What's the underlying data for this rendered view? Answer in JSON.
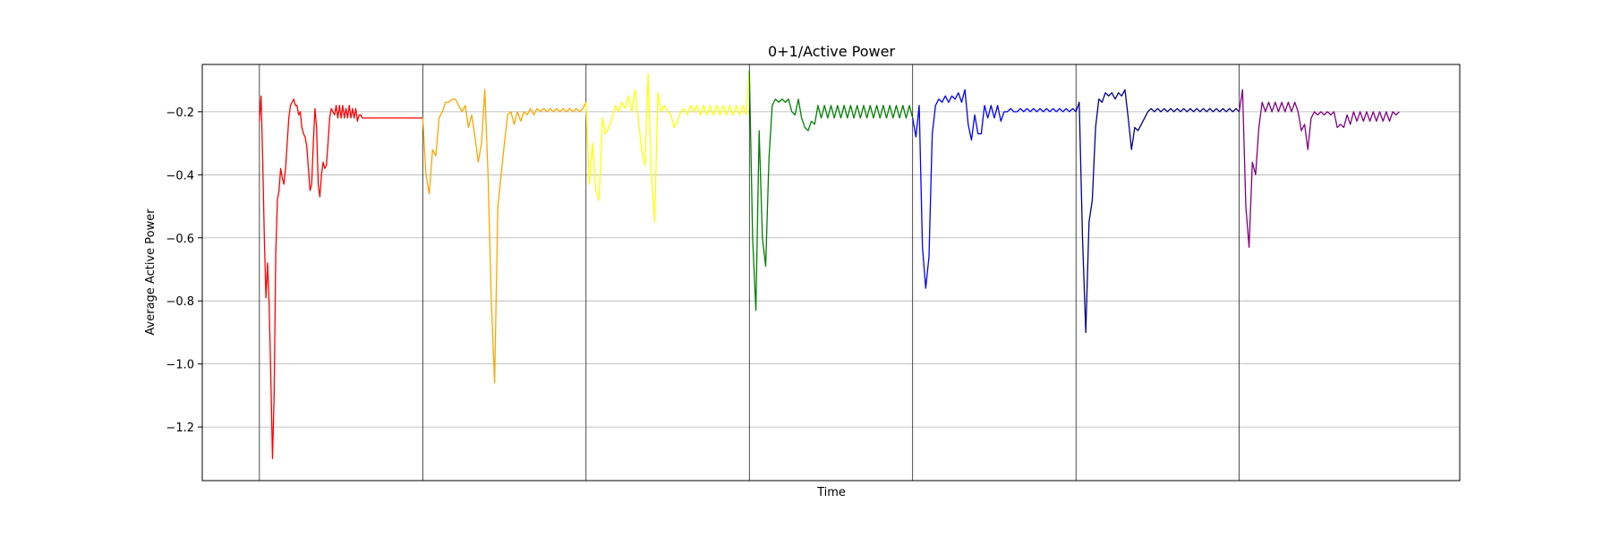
{
  "chart_data": {
    "type": "line",
    "title": "0+1/Active Power",
    "xlabel": "Time",
    "ylabel": "Average Active Power",
    "ylim": [
      -1.37,
      -0.05
    ],
    "xlim": [
      -0.35,
      7.35
    ],
    "grid": "y",
    "yticks": [
      -0.2,
      -0.4,
      -0.6,
      -0.8,
      -1.0,
      -1.2
    ],
    "ytick_labels": [
      "−0.2",
      "−0.4",
      "−0.6",
      "−0.8",
      "−1.0",
      "−1.2"
    ],
    "vlines": [
      0,
      1,
      2,
      3,
      4,
      5,
      6
    ],
    "series": [
      {
        "color": "#ff0000",
        "x": [
          0.0,
          0.01,
          0.02,
          0.03,
          0.04,
          0.05,
          0.06,
          0.07,
          0.08,
          0.09,
          0.1,
          0.11,
          0.12,
          0.13,
          0.14,
          0.15,
          0.16,
          0.17,
          0.18,
          0.19,
          0.2,
          0.21,
          0.22,
          0.23,
          0.24,
          0.25,
          0.26,
          0.27,
          0.28,
          0.29,
          0.3,
          0.31,
          0.32,
          0.33,
          0.34,
          0.35,
          0.36,
          0.37,
          0.38,
          0.39,
          0.4,
          0.41,
          0.42,
          0.43,
          0.44,
          0.45,
          0.46,
          0.47,
          0.48,
          0.49,
          0.5,
          0.51,
          0.52,
          0.53,
          0.54,
          0.55,
          0.56,
          0.57,
          0.58,
          0.59,
          0.6,
          0.61,
          0.62,
          0.63,
          0.64,
          0.65,
          0.66,
          0.67,
          0.68,
          0.69,
          0.7,
          0.71,
          0.72,
          0.73,
          0.74,
          0.75,
          0.76,
          0.77,
          0.78,
          0.79,
          0.8,
          0.81,
          0.82,
          0.83,
          0.84,
          0.85,
          0.86,
          0.87,
          0.88,
          0.89,
          0.9,
          0.91,
          0.92,
          0.93,
          0.94,
          0.95,
          0.96,
          0.97,
          0.98,
          0.99,
          1.0
        ],
        "y": [
          -0.23,
          -0.15,
          -0.35,
          -0.6,
          -0.79,
          -0.68,
          -0.82,
          -1.05,
          -1.3,
          -1.1,
          -0.65,
          -0.48,
          -0.45,
          -0.38,
          -0.41,
          -0.43,
          -0.38,
          -0.3,
          -0.22,
          -0.18,
          -0.17,
          -0.16,
          -0.18,
          -0.18,
          -0.21,
          -0.2,
          -0.25,
          -0.27,
          -0.28,
          -0.31,
          -0.38,
          -0.45,
          -0.43,
          -0.3,
          -0.19,
          -0.25,
          -0.43,
          -0.47,
          -0.4,
          -0.36,
          -0.38,
          -0.37,
          -0.3,
          -0.22,
          -0.19,
          -0.2,
          -0.21,
          -0.18,
          -0.22,
          -0.18,
          -0.22,
          -0.18,
          -0.22,
          -0.19,
          -0.22,
          -0.18,
          -0.22,
          -0.19,
          -0.22,
          -0.19,
          -0.23,
          -0.21,
          -0.21,
          -0.22,
          -0.22,
          -0.22,
          -0.22,
          -0.22,
          -0.22,
          -0.22,
          -0.22,
          -0.22,
          -0.22,
          -0.22,
          -0.22,
          -0.22,
          -0.22,
          -0.22,
          -0.22,
          -0.22,
          -0.22,
          -0.22,
          -0.22,
          -0.22,
          -0.22,
          -0.22,
          -0.22,
          -0.22,
          -0.22,
          -0.22,
          -0.22,
          -0.22,
          -0.22,
          -0.22,
          -0.22,
          -0.22,
          -0.22,
          -0.22,
          -0.22,
          -0.22,
          -0.22
        ]
      },
      {
        "color": "#ffa500",
        "x": [
          1.0,
          1.02,
          1.04,
          1.06,
          1.08,
          1.1,
          1.12,
          1.14,
          1.16,
          1.18,
          1.2,
          1.22,
          1.24,
          1.26,
          1.28,
          1.3,
          1.32,
          1.34,
          1.36,
          1.38,
          1.4,
          1.42,
          1.44,
          1.46,
          1.48,
          1.5,
          1.52,
          1.54,
          1.56,
          1.58,
          1.6,
          1.62,
          1.64,
          1.66,
          1.68,
          1.7,
          1.72,
          1.74,
          1.76,
          1.78,
          1.8,
          1.82,
          1.84,
          1.86,
          1.88,
          1.9,
          1.92,
          1.94,
          1.96,
          1.98,
          2.0
        ],
        "y": [
          -0.22,
          -0.4,
          -0.46,
          -0.32,
          -0.34,
          -0.22,
          -0.2,
          -0.17,
          -0.17,
          -0.16,
          -0.16,
          -0.18,
          -0.2,
          -0.18,
          -0.25,
          -0.21,
          -0.28,
          -0.36,
          -0.3,
          -0.13,
          -0.4,
          -0.8,
          -1.06,
          -0.5,
          -0.4,
          -0.3,
          -0.21,
          -0.2,
          -0.24,
          -0.2,
          -0.23,
          -0.2,
          -0.21,
          -0.19,
          -0.21,
          -0.19,
          -0.2,
          -0.19,
          -0.2,
          -0.19,
          -0.2,
          -0.19,
          -0.2,
          -0.19,
          -0.2,
          -0.19,
          -0.2,
          -0.19,
          -0.2,
          -0.19,
          -0.17
        ]
      },
      {
        "color": "#ffff00",
        "x": [
          2.0,
          2.02,
          2.04,
          2.06,
          2.08,
          2.1,
          2.12,
          2.14,
          2.16,
          2.18,
          2.2,
          2.22,
          2.24,
          2.26,
          2.28,
          2.3,
          2.32,
          2.34,
          2.36,
          2.38,
          2.4,
          2.42,
          2.44,
          2.46,
          2.48,
          2.5,
          2.52,
          2.54,
          2.56,
          2.58,
          2.6,
          2.62,
          2.64,
          2.66,
          2.68,
          2.7,
          2.72,
          2.74,
          2.76,
          2.78,
          2.8,
          2.82,
          2.84,
          2.86,
          2.88,
          2.9,
          2.92,
          2.94,
          2.96,
          2.98,
          3.0
        ],
        "y": [
          -0.17,
          -0.43,
          -0.3,
          -0.45,
          -0.48,
          -0.22,
          -0.27,
          -0.25,
          -0.22,
          -0.18,
          -0.2,
          -0.17,
          -0.19,
          -0.15,
          -0.2,
          -0.13,
          -0.22,
          -0.32,
          -0.37,
          -0.08,
          -0.4,
          -0.55,
          -0.14,
          -0.2,
          -0.18,
          -0.2,
          -0.21,
          -0.25,
          -0.23,
          -0.2,
          -0.19,
          -0.21,
          -0.18,
          -0.2,
          -0.18,
          -0.21,
          -0.18,
          -0.21,
          -0.18,
          -0.21,
          -0.18,
          -0.21,
          -0.18,
          -0.21,
          -0.18,
          -0.21,
          -0.18,
          -0.21,
          -0.18,
          -0.21,
          -0.07
        ]
      },
      {
        "color": "#008000",
        "x": [
          3.0,
          3.02,
          3.04,
          3.06,
          3.08,
          3.1,
          3.12,
          3.14,
          3.16,
          3.18,
          3.2,
          3.22,
          3.24,
          3.26,
          3.28,
          3.3,
          3.32,
          3.34,
          3.36,
          3.38,
          3.4,
          3.42,
          3.44,
          3.46,
          3.48,
          3.5,
          3.52,
          3.54,
          3.56,
          3.58,
          3.6,
          3.62,
          3.64,
          3.66,
          3.68,
          3.7,
          3.72,
          3.74,
          3.76,
          3.78,
          3.8,
          3.82,
          3.84,
          3.86,
          3.88,
          3.9,
          3.92,
          3.94,
          3.96,
          3.98,
          4.0
        ],
        "y": [
          -0.07,
          -0.6,
          -0.83,
          -0.26,
          -0.6,
          -0.69,
          -0.35,
          -0.18,
          -0.16,
          -0.17,
          -0.16,
          -0.17,
          -0.16,
          -0.2,
          -0.21,
          -0.16,
          -0.22,
          -0.25,
          -0.26,
          -0.23,
          -0.24,
          -0.18,
          -0.22,
          -0.18,
          -0.22,
          -0.18,
          -0.22,
          -0.18,
          -0.22,
          -0.18,
          -0.22,
          -0.18,
          -0.22,
          -0.18,
          -0.22,
          -0.18,
          -0.22,
          -0.18,
          -0.22,
          -0.18,
          -0.22,
          -0.18,
          -0.22,
          -0.18,
          -0.22,
          -0.18,
          -0.22,
          -0.18,
          -0.22,
          -0.18,
          -0.22
        ]
      },
      {
        "color": "#0000ff",
        "x": [
          4.0,
          4.02,
          4.04,
          4.06,
          4.08,
          4.1,
          4.12,
          4.14,
          4.16,
          4.18,
          4.2,
          4.22,
          4.24,
          4.26,
          4.28,
          4.3,
          4.32,
          4.34,
          4.36,
          4.38,
          4.4,
          4.42,
          4.44,
          4.46,
          4.48,
          4.5,
          4.52,
          4.54,
          4.56,
          4.58,
          4.6,
          4.62,
          4.64,
          4.66,
          4.68,
          4.7,
          4.72,
          4.74,
          4.76,
          4.78,
          4.8,
          4.82,
          4.84,
          4.86,
          4.88,
          4.9,
          4.92,
          4.94,
          4.96,
          4.98,
          5.0
        ],
        "y": [
          -0.22,
          -0.28,
          -0.18,
          -0.63,
          -0.76,
          -0.66,
          -0.27,
          -0.18,
          -0.16,
          -0.17,
          -0.15,
          -0.17,
          -0.15,
          -0.16,
          -0.14,
          -0.17,
          -0.13,
          -0.24,
          -0.29,
          -0.21,
          -0.27,
          -0.27,
          -0.18,
          -0.22,
          -0.18,
          -0.22,
          -0.18,
          -0.23,
          -0.2,
          -0.2,
          -0.19,
          -0.2,
          -0.2,
          -0.19,
          -0.2,
          -0.19,
          -0.2,
          -0.19,
          -0.2,
          -0.19,
          -0.2,
          -0.19,
          -0.2,
          -0.19,
          -0.2,
          -0.19,
          -0.2,
          -0.19,
          -0.2,
          -0.19,
          -0.2
        ]
      },
      {
        "color": "#00008b",
        "x": [
          5.0,
          5.02,
          5.04,
          5.06,
          5.08,
          5.1,
          5.12,
          5.14,
          5.16,
          5.18,
          5.2,
          5.22,
          5.24,
          5.26,
          5.28,
          5.3,
          5.32,
          5.34,
          5.36,
          5.38,
          5.4,
          5.42,
          5.44,
          5.46,
          5.48,
          5.5,
          5.52,
          5.54,
          5.56,
          5.58,
          5.6,
          5.62,
          5.64,
          5.66,
          5.68,
          5.7,
          5.72,
          5.74,
          5.76,
          5.78,
          5.8,
          5.82,
          5.84,
          5.86,
          5.88,
          5.9,
          5.92,
          5.94,
          5.96,
          5.98,
          6.0
        ],
        "y": [
          -0.2,
          -0.17,
          -0.6,
          -0.9,
          -0.55,
          -0.48,
          -0.25,
          -0.16,
          -0.17,
          -0.14,
          -0.15,
          -0.14,
          -0.16,
          -0.14,
          -0.15,
          -0.13,
          -0.22,
          -0.32,
          -0.25,
          -0.26,
          -0.24,
          -0.22,
          -0.2,
          -0.19,
          -0.2,
          -0.19,
          -0.2,
          -0.19,
          -0.2,
          -0.19,
          -0.2,
          -0.19,
          -0.2,
          -0.19,
          -0.2,
          -0.19,
          -0.2,
          -0.19,
          -0.2,
          -0.19,
          -0.2,
          -0.19,
          -0.2,
          -0.19,
          -0.2,
          -0.19,
          -0.2,
          -0.19,
          -0.2,
          -0.19,
          -0.2
        ]
      },
      {
        "color": "#800080",
        "x": [
          6.0,
          6.02,
          6.04,
          6.06,
          6.08,
          6.1,
          6.12,
          6.14,
          6.16,
          6.18,
          6.2,
          6.22,
          6.24,
          6.26,
          6.28,
          6.3,
          6.32,
          6.34,
          6.36,
          6.38,
          6.4,
          6.42,
          6.44,
          6.46,
          6.48,
          6.5,
          6.52,
          6.54,
          6.56,
          6.58,
          6.6,
          6.62,
          6.64,
          6.66,
          6.68,
          6.7,
          6.72,
          6.74,
          6.76,
          6.78,
          6.8,
          6.82,
          6.84,
          6.86,
          6.88,
          6.9,
          6.92,
          6.94,
          6.96,
          6.98
        ],
        "y": [
          -0.2,
          -0.13,
          -0.5,
          -0.63,
          -0.36,
          -0.4,
          -0.25,
          -0.17,
          -0.2,
          -0.17,
          -0.2,
          -0.17,
          -0.2,
          -0.17,
          -0.2,
          -0.17,
          -0.2,
          -0.17,
          -0.2,
          -0.26,
          -0.24,
          -0.32,
          -0.22,
          -0.2,
          -0.21,
          -0.2,
          -0.21,
          -0.2,
          -0.21,
          -0.2,
          -0.25,
          -0.24,
          -0.25,
          -0.21,
          -0.24,
          -0.2,
          -0.23,
          -0.2,
          -0.23,
          -0.2,
          -0.23,
          -0.2,
          -0.23,
          -0.2,
          -0.23,
          -0.2,
          -0.23,
          -0.2,
          -0.21,
          -0.2
        ]
      }
    ]
  }
}
